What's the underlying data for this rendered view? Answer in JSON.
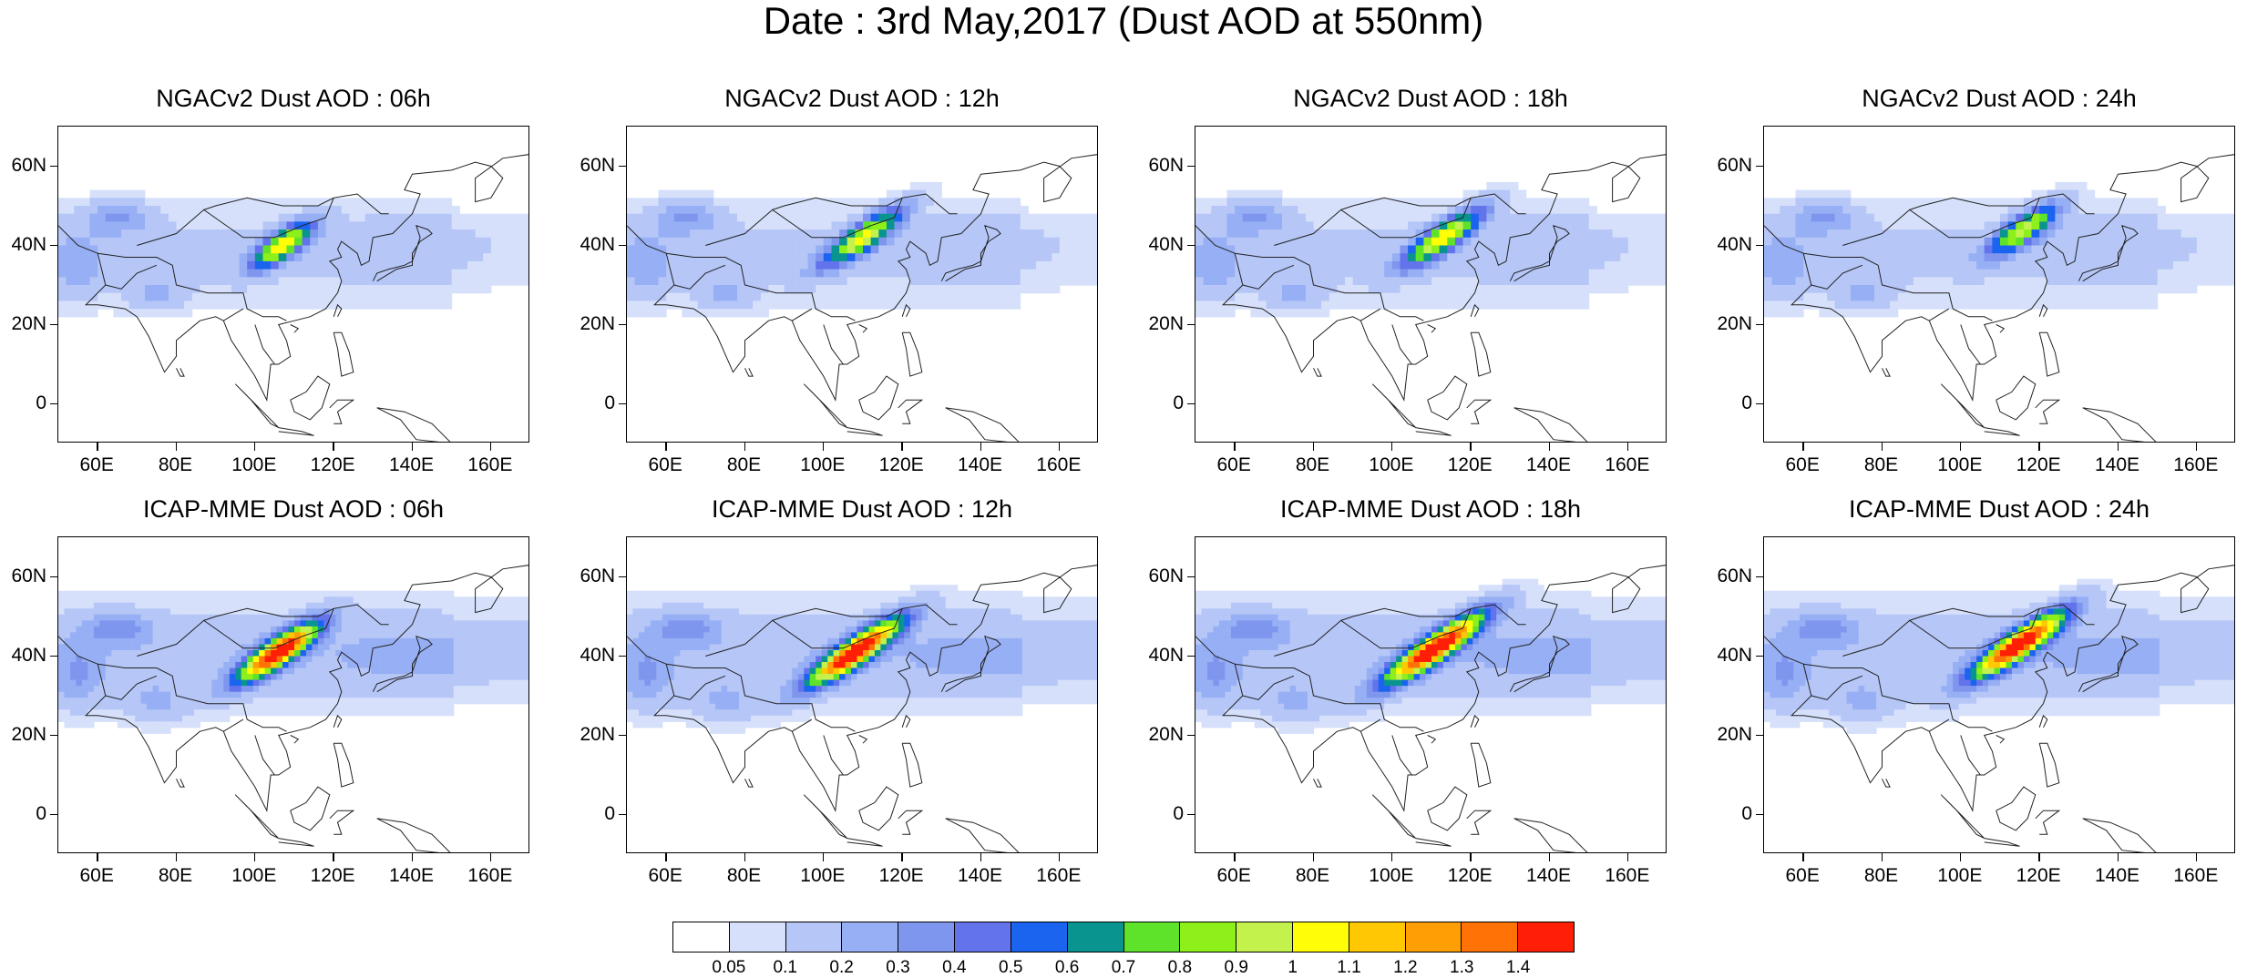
{
  "title": "Date : 3rd May,2017 (Dust AOD at 550nm)",
  "panels": [
    {
      "title": "NGACv2 Dust AOD : 06h",
      "model": "NGACv2",
      "hour": "06h",
      "plume": {
        "lon": 107,
        "lat": 40,
        "ext": 9,
        "peak": 0.95
      }
    },
    {
      "title": "NGACv2 Dust AOD : 12h",
      "model": "NGACv2",
      "hour": "12h",
      "plume": {
        "lon": 110,
        "lat": 42,
        "ext": 12,
        "peak": 0.95
      }
    },
    {
      "title": "NGACv2 Dust AOD : 18h",
      "model": "NGACv2",
      "hour": "18h",
      "plume": {
        "lon": 113,
        "lat": 42,
        "ext": 12,
        "peak": 0.95
      }
    },
    {
      "title": "NGACv2 Dust AOD : 24h",
      "model": "NGACv2",
      "hour": "24h",
      "plume": {
        "lon": 116,
        "lat": 44,
        "ext": 10,
        "peak": 0.9
      }
    },
    {
      "title": "ICAP-MME Dust AOD : 06h",
      "model": "ICAP-MME",
      "hour": "06h",
      "plume": {
        "lon": 106,
        "lat": 41,
        "ext": 12,
        "peak": 1.5
      }
    },
    {
      "title": "ICAP-MME Dust AOD : 12h",
      "model": "ICAP-MME",
      "hour": "12h",
      "plume": {
        "lon": 108,
        "lat": 41,
        "ext": 14,
        "peak": 1.5
      }
    },
    {
      "title": "ICAP-MME Dust AOD : 18h",
      "model": "ICAP-MME",
      "hour": "18h",
      "plume": {
        "lon": 111,
        "lat": 42,
        "ext": 15,
        "peak": 1.5
      }
    },
    {
      "title": "ICAP-MME Dust AOD : 24h",
      "model": "ICAP-MME",
      "hour": "24h",
      "plume": {
        "lon": 115,
        "lat": 43,
        "ext": 14,
        "peak": 1.5
      }
    }
  ],
  "lat_labels": [
    "60N",
    "40N",
    "20N",
    "0"
  ],
  "lon_labels": [
    "60E",
    "80E",
    "100E",
    "120E",
    "140E",
    "160E"
  ],
  "map_extent": {
    "lon": [
      50,
      170
    ],
    "lat": [
      -10,
      70
    ]
  },
  "colorbar": {
    "labels": [
      "0.05",
      "0.1",
      "0.2",
      "0.3",
      "0.4",
      "0.5",
      "0.6",
      "0.7",
      "0.8",
      "0.9",
      "1",
      "1.1",
      "1.2",
      "1.3",
      "1.4"
    ],
    "colors": [
      "#ffffff",
      "#d6e0fb",
      "#b5c6f7",
      "#97aff4",
      "#7f96ee",
      "#6373eb",
      "#1a64f0",
      "#0a9490",
      "#5fe32a",
      "#8df01b",
      "#c4f24d",
      "#fffe08",
      "#ffc704",
      "#ff9e05",
      "#ff7306",
      "#ff1f06"
    ]
  }
}
